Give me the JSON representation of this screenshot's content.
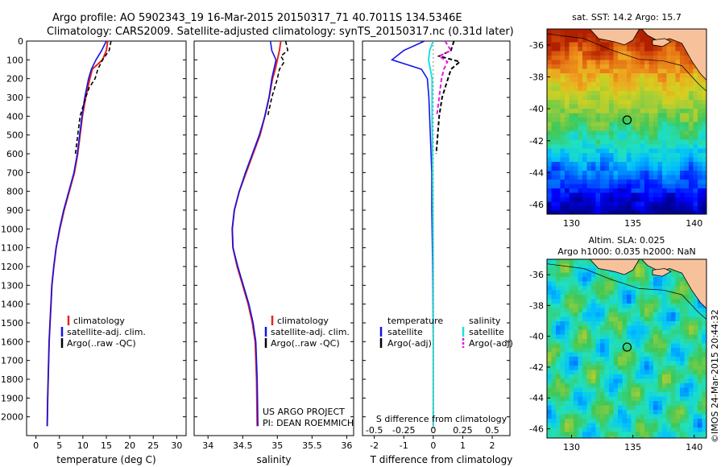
{
  "header": {
    "line1": "Argo profile: AO 5902343_19 16-Mar-2015 20150317_71 40.7011S 134.5346E",
    "line2": "Climatology: CARS2009. Satellite-adjusted climatology: synTS_20150317.nc (0.31d later)"
  },
  "colors": {
    "climatology": "#e8231d",
    "satellite": "#1414e6",
    "argo": "#000000",
    "sal_satellite": "#1de0e0",
    "sal_argo": "#e31ae3",
    "land": "#f7c29b"
  },
  "footer": {
    "project": "US ARGO PROJECT",
    "pi": "PI: DEAN ROEMMICH",
    "stamp": "©IMOS 24-Mar-2015 20:44:32"
  },
  "chart_data": [
    {
      "type": "line",
      "xlabel": "temperature (deg C)",
      "ylabel": "",
      "xlim": [
        -2,
        32
      ],
      "ylim": [
        2100,
        0
      ],
      "xticks": [
        "0",
        "5",
        "10",
        "15",
        "20",
        "25",
        "30"
      ],
      "yticks": [
        "0",
        "100",
        "200",
        "300",
        "400",
        "500",
        "600",
        "700",
        "800",
        "900",
        "1000",
        "1100",
        "1200",
        "1300",
        "1400",
        "1500",
        "1600",
        "1700",
        "1800",
        "1900",
        "2000"
      ],
      "legend": [
        "climatology",
        "satellite-adj. clim.",
        "Argo(..raw -QC)"
      ],
      "series": [
        {
          "name": "climatology",
          "x": [
            15.3,
            15.0,
            14.2,
            12.0,
            11.5,
            10.6,
            9.9,
            9.4,
            8.9,
            8.2,
            7.1,
            6.0,
            5.1,
            4.3,
            3.8,
            3.4,
            3.2,
            3.0,
            2.8,
            2.7,
            2.6,
            2.5,
            2.4
          ],
          "y": [
            0,
            50,
            100,
            150,
            200,
            300,
            400,
            500,
            600,
            700,
            800,
            900,
            1000,
            1100,
            1200,
            1300,
            1400,
            1500,
            1600,
            1700,
            1800,
            1900,
            2050
          ]
        },
        {
          "name": "satellite-adj. clim.",
          "x": [
            15.0,
            14.0,
            12.8,
            11.8,
            11.2,
            10.4,
            9.8,
            9.3,
            8.8,
            8.1,
            7.0,
            5.9,
            5.0,
            4.3,
            3.8,
            3.4,
            3.2,
            3.0,
            2.8,
            2.7,
            2.6,
            2.5,
            2.4
          ],
          "y": [
            0,
            50,
            100,
            150,
            200,
            300,
            400,
            500,
            600,
            700,
            800,
            900,
            1000,
            1100,
            1200,
            1300,
            1400,
            1500,
            1600,
            1700,
            1800,
            1900,
            2050
          ]
        },
        {
          "name": "Argo(..raw -QC)",
          "x": [
            16.0,
            15.6,
            14.2,
            13.2,
            12.6,
            11.3,
            10.6,
            10.0,
            9.4,
            8.9,
            8.4
          ],
          "y": [
            0,
            50,
            100,
            150,
            200,
            250,
            300,
            350,
            400,
            500,
            600
          ]
        }
      ]
    },
    {
      "type": "line",
      "xlabel": "salinity",
      "ylabel": "",
      "xlim": [
        33.8,
        36.1
      ],
      "ylim": [
        2100,
        0
      ],
      "xticks": [
        "34",
        "34.5",
        "35",
        "35.5",
        "36"
      ],
      "legend": [
        "climatology",
        "satellite-adj. clim.",
        "Argo(..raw -QC)"
      ],
      "series": [
        {
          "name": "climatology",
          "x": [
            35.05,
            35.03,
            35.0,
            34.97,
            34.93,
            34.88,
            34.82,
            34.75,
            34.65,
            34.55,
            34.45,
            34.38,
            34.35,
            34.36,
            34.42,
            34.5,
            34.58,
            34.64,
            34.68,
            34.7,
            34.71
          ],
          "y": [
            0,
            50,
            100,
            150,
            200,
            300,
            400,
            500,
            600,
            700,
            800,
            900,
            1000,
            1100,
            1200,
            1300,
            1400,
            1500,
            1600,
            1800,
            2050
          ]
        },
        {
          "name": "satellite-adj. clim.",
          "x": [
            34.9,
            34.92,
            34.98,
            34.95,
            34.92,
            34.88,
            34.82,
            34.74,
            34.64,
            34.54,
            34.45,
            34.38,
            34.35,
            34.36,
            34.43,
            34.51,
            34.59,
            34.65,
            34.69,
            34.71,
            34.72
          ],
          "y": [
            0,
            50,
            100,
            150,
            200,
            300,
            400,
            500,
            600,
            700,
            800,
            900,
            1000,
            1100,
            1200,
            1300,
            1400,
            1500,
            1600,
            1800,
            2050
          ]
        },
        {
          "name": "Argo(..raw -QC)",
          "x": [
            35.12,
            35.15,
            35.05,
            35.1,
            35.03,
            35.0,
            34.96,
            34.92,
            34.86
          ],
          "y": [
            0,
            50,
            80,
            110,
            150,
            200,
            250,
            300,
            400
          ]
        }
      ]
    },
    {
      "type": "line",
      "xlabel": "T difference from climatology",
      "xlabel_top": "S difference from climatology",
      "xlim": [
        -2.4,
        2.6
      ],
      "ylim": [
        2100,
        0
      ],
      "xticks": [
        "-2",
        "-1",
        "0",
        "1",
        "2"
      ],
      "xticks_top": [
        "-0.5",
        "-0.25",
        "0",
        "0.25",
        "0.5"
      ],
      "legend_groups": [
        {
          "title": "temperature",
          "items": [
            "satellite",
            "Argo(-adj)"
          ]
        },
        {
          "title": "salinity",
          "items": [
            "satellite",
            "Argo(-adj)"
          ]
        }
      ],
      "series": [
        {
          "name": "temperature satellite",
          "x": [
            -0.3,
            -1.0,
            -1.4,
            -0.4,
            -0.2,
            -0.15,
            -0.1,
            -0.05,
            -0.05,
            -0.02,
            0.0,
            0.0
          ],
          "y": [
            0,
            50,
            100,
            150,
            200,
            300,
            500,
            700,
            900,
            1200,
            1600,
            2050
          ]
        },
        {
          "name": "temperature Argo(-adj)",
          "x": [
            0.7,
            0.6,
            0.2,
            0.9,
            0.6,
            0.5,
            0.3,
            0.2,
            0.1
          ],
          "y": [
            0,
            50,
            80,
            110,
            150,
            200,
            300,
            400,
            600
          ]
        },
        {
          "name": "salinity satellite",
          "x": [
            0.0,
            -0.03,
            -0.04,
            -0.01,
            -0.01,
            -0.005,
            0.0,
            0.0
          ],
          "y": [
            0,
            50,
            100,
            200,
            400,
            700,
            1200,
            2050
          ]
        },
        {
          "name": "salinity Argo(-adj)",
          "x": [
            0.1,
            0.15,
            0.05,
            0.12,
            0.09,
            0.07,
            0.05,
            0.03
          ],
          "y": [
            0,
            50,
            80,
            110,
            150,
            200,
            300,
            400
          ]
        }
      ]
    },
    {
      "type": "heatmap",
      "title": "sat. SST: 14.2  Argo: 15.7",
      "xlim": [
        128,
        141
      ],
      "ylim": [
        -46.6,
        -35
      ],
      "xticks": [
        "130",
        "135",
        "140"
      ],
      "yticks": [
        "-36",
        "-38",
        "-40",
        "-42",
        "-44",
        "-46"
      ],
      "marker": {
        "lon": 134.53,
        "lat": -40.7
      }
    },
    {
      "type": "heatmap",
      "title": "Altim. SLA: 0.025",
      "subtitle": "Argo h1000: 0.035  h2000: NaN",
      "xlim": [
        128,
        141
      ],
      "ylim": [
        -46.6,
        -35
      ],
      "xticks": [
        "130",
        "135",
        "140"
      ],
      "yticks": [
        "-36",
        "-38",
        "-40",
        "-42",
        "-44",
        "-46"
      ],
      "marker": {
        "lon": 134.53,
        "lat": -40.7
      }
    }
  ]
}
